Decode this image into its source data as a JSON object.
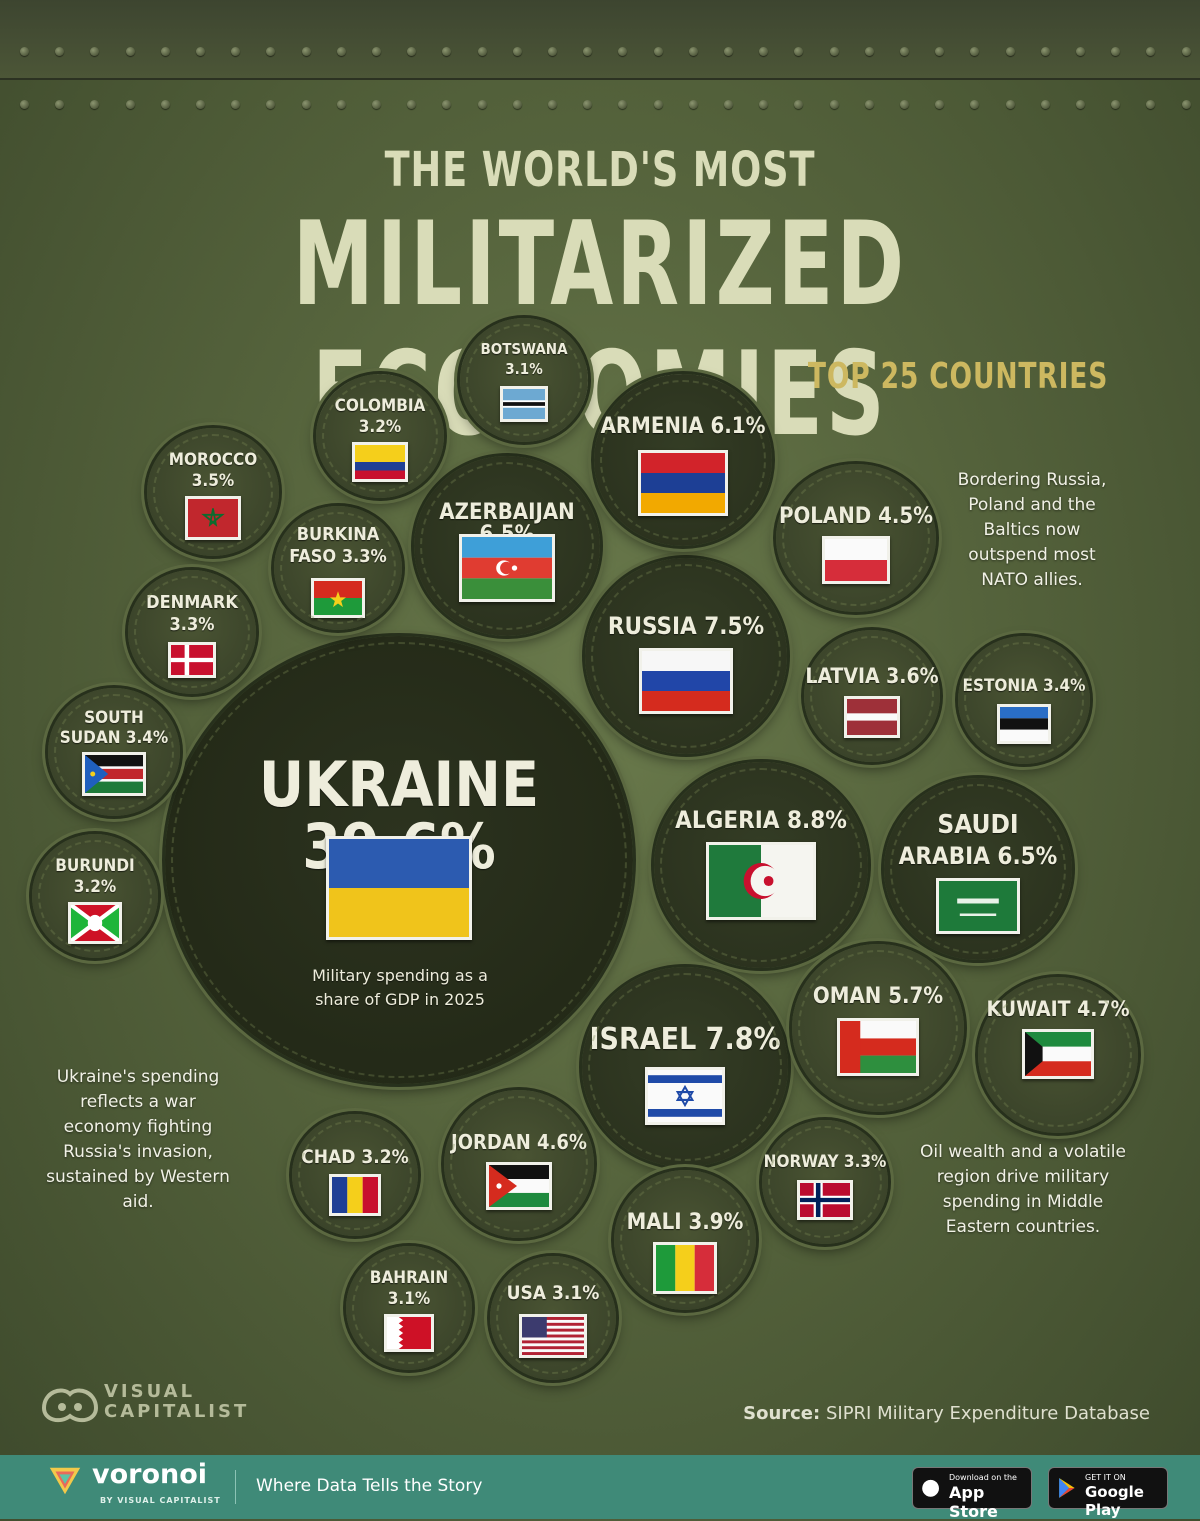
{
  "header": {
    "title_line1": "THE WORLD'S MOST",
    "title_line2": "MILITARIZED ECONOMIES",
    "subtitle": "TOP 25 COUNTRIES"
  },
  "chart_data": {
    "type": "bubble",
    "title": "THE WORLD'S MOST MILITARIZED ECONOMIES",
    "subtitle": "TOP 25 COUNTRIES",
    "unit": "%",
    "categories": [
      "Ukraine",
      "Algeria",
      "Israel",
      "Russia",
      "Azerbaijan",
      "Saudi Arabia",
      "Armenia",
      "Oman",
      "Kuwait",
      "Jordan",
      "Poland",
      "Mali",
      "Latvia",
      "Morocco",
      "Estonia",
      "South Sudan",
      "Burkina Faso",
      "Denmark",
      "Norway",
      "Colombia",
      "Chad",
      "Burundi",
      "Botswana",
      "Bahrain",
      "USA"
    ],
    "values": [
      39.6,
      8.8,
      7.8,
      7.5,
      6.5,
      6.5,
      6.1,
      5.7,
      4.7,
      4.6,
      4.5,
      3.9,
      3.6,
      3.5,
      3.4,
      3.4,
      3.3,
      3.3,
      3.3,
      3.2,
      3.2,
      3.2,
      3.1,
      3.1,
      3.1
    ]
  },
  "countries": [
    {
      "name": "UKRAINE",
      "label": "UKRAINE 39.6%"
    },
    {
      "name": "ALGERIA",
      "label": "ALGERIA 8.8%"
    },
    {
      "name": "ISRAEL",
      "label": "ISRAEL 7.8%"
    },
    {
      "name": "RUSSIA",
      "label": "RUSSIA 7.5%"
    },
    {
      "name": "AZERBAIJAN",
      "label": "AZERBAIJAN 6.5%"
    },
    {
      "name": "SAUDI ARABIA",
      "label_line1": "SAUDI",
      "label_line2": "ARABIA 6.5%"
    },
    {
      "name": "ARMENIA",
      "label": "ARMENIA 6.1%"
    },
    {
      "name": "OMAN",
      "label": "OMAN 5.7%"
    },
    {
      "name": "KUWAIT",
      "label": "KUWAIT 4.7%"
    },
    {
      "name": "JORDAN",
      "label": "JORDAN 4.6%"
    },
    {
      "name": "POLAND",
      "label": "POLAND 4.5%"
    },
    {
      "name": "MALI",
      "label": "MALI 3.9%"
    },
    {
      "name": "LATVIA",
      "label": "LATVIA 3.6%"
    },
    {
      "name": "MOROCCO",
      "label_line1": "MOROCCO",
      "label_line2": "3.5%"
    },
    {
      "name": "ESTONIA",
      "label": "ESTONIA 3.4%"
    },
    {
      "name": "SOUTH SUDAN",
      "label_line1": "SOUTH",
      "label_line2": "SUDAN 3.4%"
    },
    {
      "name": "BURKINA FASO",
      "label_line1": "BURKINA",
      "label_line2": "FASO 3.3%"
    },
    {
      "name": "DENMARK",
      "label_line1": "DENMARK",
      "label_line2": "3.3%"
    },
    {
      "name": "NORWAY",
      "label": "NORWAY 3.3%"
    },
    {
      "name": "COLOMBIA",
      "label_line1": "COLOMBIA",
      "label_line2": "3.2%"
    },
    {
      "name": "CHAD",
      "label": "CHAD 3.2%"
    },
    {
      "name": "BURUNDI",
      "label_line1": "BURUNDI",
      "label_line2": "3.2%"
    },
    {
      "name": "BOTSWANA",
      "label_line1": "BOTSWANA",
      "label_line2": "3.1%"
    },
    {
      "name": "BAHRAIN",
      "label_line1": "BAHRAIN",
      "label_line2": "3.1%"
    },
    {
      "name": "USA",
      "label": "USA 3.1%"
    }
  ],
  "ukraine_caption": "Military spending as a share of GDP in 2025",
  "notes": {
    "baltics": "Bordering Russia, Poland and the Baltics now outspend most NATO allies.",
    "ukraine": "Ukraine's spending reflects a war economy fighting Russia's invasion, sustained by Western aid.",
    "middle_east": "Oil wealth and a volatile region drive military spending in Middle Eastern countries."
  },
  "source": {
    "label": "Source:",
    "text": "SIPRI Military Expenditure Database"
  },
  "branding": {
    "vc_line1": "VISUAL",
    "vc_line2": "CAPITALIST",
    "voronoi": "voronoi",
    "voronoi_by": "BY VISUAL CAPITALIST",
    "tagline": "Where Data Tells the Story",
    "appstore_small": "Download on the",
    "appstore_big": "App Store",
    "googleplay_small": "GET IT ON",
    "googleplay_big": "Google Play"
  },
  "colors": {
    "background": "#55633c",
    "title": "#d9dcb8",
    "subtitle": "#cdb860",
    "footer": "#3f8a78"
  }
}
